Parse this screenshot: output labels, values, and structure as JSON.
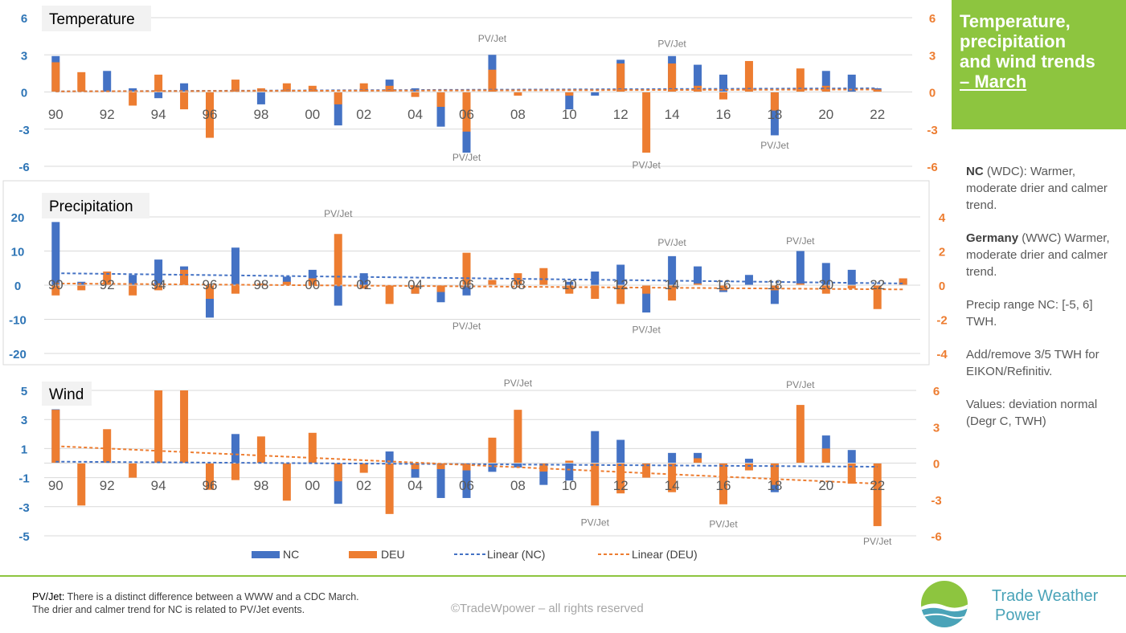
{
  "sidebar": {
    "title_lines": [
      "Temperature,",
      "precipitation",
      "and wind trends"
    ],
    "title_link": "– March",
    "notes": [
      {
        "bold": "NC",
        "text": " (WDC): Warmer, moderate drier and calmer trend."
      },
      {
        "bold": "Germany",
        "text": " (WWC) Warmer, moderate drier and calmer trend."
      },
      {
        "bold": "",
        "text": "Precip range NC: [-5, 6] TWH."
      },
      {
        "bold": "",
        "text": "Add/remove 3/5 TWH for EIKON/Refinitiv."
      },
      {
        "bold": "",
        "text": "Values: deviation normal (Degr C, TWH)"
      }
    ]
  },
  "footer": {
    "pvjet_label": "PV/Jet:",
    "pvjet_line1": " There is a distinct difference between a WWW and a CDC March.",
    "pvjet_line2": "The drier and calmer trend for NC is related to PV/Jet events.",
    "copyright": "©TradeWpower – all rights reserved",
    "brand_line1": "Trade Weather",
    "brand_line2": "Power"
  },
  "legend": {
    "nc": "NC",
    "deu": "DEU",
    "lin_nc": "Linear (NC)",
    "lin_deu": "Linear (DEU)"
  },
  "colors": {
    "nc": "#4472c4",
    "deu": "#ed7d31",
    "left_axis": "#2e75b6",
    "accent": "#8dc53f"
  },
  "chart_data": [
    {
      "type": "bar",
      "title": "Temperature",
      "x_labels": [
        "90",
        "92",
        "94",
        "96",
        "98",
        "00",
        "02",
        "04",
        "06",
        "08",
        "10",
        "12",
        "14",
        "16",
        "18",
        "20",
        "22"
      ],
      "years": [
        1990,
        1991,
        1992,
        1993,
        1994,
        1995,
        1996,
        1997,
        1998,
        1999,
        2000,
        2001,
        2002,
        2003,
        2004,
        2005,
        2006,
        2007,
        2008,
        2009,
        2010,
        2011,
        2012,
        2013,
        2014,
        2015,
        2016,
        2017,
        2018,
        2019,
        2020,
        2021,
        2022
      ],
      "left_ylim": [
        -6,
        6
      ],
      "left_ticks": [
        -6,
        -3,
        0,
        3,
        6
      ],
      "right_ylim": [
        -6,
        6
      ],
      "right_ticks": [
        -6,
        -3,
        0,
        3,
        6
      ],
      "series": [
        {
          "name": "NC",
          "axis": "left",
          "values": [
            2.9,
            0,
            1.7,
            0.3,
            -0.5,
            0.7,
            -1.2,
            0,
            -1.0,
            0,
            0,
            -2.7,
            0.3,
            1.0,
            0.3,
            -2.8,
            -4.9,
            3.0,
            0,
            0,
            -1.4,
            -0.3,
            2.6,
            0,
            2.9,
            2.2,
            1.4,
            0,
            -3.5,
            0,
            1.7,
            1.4,
            0.3
          ]
        },
        {
          "name": "DEU",
          "axis": "right",
          "values": [
            2.4,
            1.6,
            0,
            -1.1,
            1.4,
            -1.4,
            -3.7,
            1.0,
            0.3,
            0.7,
            0.5,
            -1.0,
            0.7,
            0.5,
            -0.4,
            -1.2,
            -3.2,
            1.8,
            -0.3,
            0,
            -0.3,
            0,
            2.3,
            -4.9,
            2.3,
            0.5,
            -0.6,
            2.5,
            -1.5,
            1.9,
            0.5,
            0,
            0.2
          ]
        },
        {
          "name": "Linear (NC)",
          "axis": "left",
          "start": 0.05,
          "end": 0.3
        },
        {
          "name": "Linear (DEU)",
          "axis": "right",
          "start": 0.05,
          "end": 0.2
        }
      ],
      "annotations": [
        {
          "text": "PV/Jet",
          "year": 2007,
          "value": 4.3
        },
        {
          "text": "PV/Jet",
          "year": 2006,
          "value": -5.3
        },
        {
          "text": "PV/Jet",
          "year": 2014,
          "value": 3.9
        },
        {
          "text": "PV/Jet",
          "year": 2013,
          "value": -5.9
        },
        {
          "text": "PV/Jet",
          "year": 2018,
          "value": -4.3
        }
      ]
    },
    {
      "type": "bar",
      "title": "Precipitation",
      "x_labels": [
        "90",
        "92",
        "94",
        "96",
        "98",
        "00",
        "02",
        "04",
        "06",
        "08",
        "10",
        "12",
        "14",
        "16",
        "18",
        "20",
        "22"
      ],
      "years": [
        1990,
        1991,
        1992,
        1993,
        1994,
        1995,
        1996,
        1997,
        1998,
        1999,
        2000,
        2001,
        2002,
        2003,
        2004,
        2005,
        2006,
        2007,
        2008,
        2009,
        2010,
        2011,
        2012,
        2013,
        2014,
        2015,
        2016,
        2017,
        2018,
        2019,
        2020,
        2021,
        2022,
        2023
      ],
      "left_ylim": [
        -20,
        20
      ],
      "left_ticks": [
        -20,
        -10,
        0,
        10,
        20
      ],
      "right_ylim": [
        -4,
        4
      ],
      "right_ticks": [
        -4,
        -2,
        0,
        2,
        4
      ],
      "series": [
        {
          "name": "NC",
          "axis": "left",
          "values": [
            18.5,
            1.0,
            0,
            3.0,
            7.5,
            5.5,
            -9.5,
            11.0,
            0,
            2.5,
            4.5,
            -6.0,
            3.5,
            0,
            -2.5,
            -5.0,
            -3.0,
            1.5,
            0,
            0,
            1.0,
            4.0,
            6.0,
            -8.0,
            8.5,
            5.5,
            -2.0,
            3.0,
            -5.5,
            10.0,
            6.5,
            4.5,
            0,
            2.0
          ]
        },
        {
          "name": "DEU",
          "axis": "right",
          "values": [
            -0.6,
            -0.3,
            0.8,
            -0.6,
            -0.3,
            0.9,
            -0.8,
            -0.5,
            0.1,
            0.2,
            0.4,
            3.0,
            -0.2,
            -1.1,
            -0.5,
            -0.4,
            1.9,
            0.3,
            0.7,
            1.0,
            -0.5,
            -0.8,
            -1.1,
            -0.5,
            -0.9,
            0.1,
            -0.3,
            0,
            -0.3,
            0.1,
            -0.5,
            -0.2,
            -1.4,
            0.4
          ]
        },
        {
          "name": "Linear (NC)",
          "axis": "left",
          "start": 3.5,
          "end": 0.5
        },
        {
          "name": "Linear (DEU)",
          "axis": "right",
          "start": 0.1,
          "end": -0.25
        }
      ],
      "annotations": [
        {
          "text": "PV/Jet",
          "year": 2001,
          "value": 21
        },
        {
          "text": "PV/Jet",
          "year": 2006,
          "value": -12
        },
        {
          "text": "PV/Jet",
          "year": 2014,
          "value": 12.5
        },
        {
          "text": "PV/Jet",
          "year": 2013,
          "value": -13
        },
        {
          "text": "PV/Jet",
          "year": 2019,
          "value": 13
        }
      ]
    },
    {
      "type": "bar",
      "title": "Wind",
      "x_labels": [
        "90",
        "92",
        "94",
        "96",
        "98",
        "00",
        "02",
        "04",
        "06",
        "08",
        "10",
        "12",
        "14",
        "16",
        "18",
        "20",
        "22"
      ],
      "years": [
        1990,
        1991,
        1992,
        1993,
        1994,
        1995,
        1996,
        1997,
        1998,
        1999,
        2000,
        2001,
        2002,
        2003,
        2004,
        2005,
        2006,
        2007,
        2008,
        2009,
        2010,
        2011,
        2012,
        2013,
        2014,
        2015,
        2016,
        2017,
        2018,
        2019,
        2020,
        2021,
        2022
      ],
      "left_ylim": [
        -5,
        5
      ],
      "left_ticks": [
        -5,
        -3,
        -1,
        1,
        3,
        5
      ],
      "right_ylim": [
        -6,
        6
      ],
      "right_ticks": [
        -6,
        -3,
        0,
        3,
        6
      ],
      "series": [
        {
          "name": "NC",
          "axis": "left",
          "values": [
            3.7,
            0,
            0,
            0,
            0,
            0,
            0,
            2.0,
            0,
            0,
            0,
            -2.8,
            0,
            0.8,
            -1.0,
            -2.4,
            -2.4,
            -0.6,
            -0.3,
            -1.5,
            -1.2,
            2.2,
            1.6,
            0,
            0.7,
            0.7,
            0,
            0.3,
            -2.0,
            0,
            1.9,
            0.9,
            0
          ]
        },
        {
          "name": "DEU",
          "axis": "right",
          "values": [
            4.4,
            -3.5,
            2.8,
            -1.2,
            6.0,
            6.0,
            -2.2,
            -1.4,
            2.2,
            -3.1,
            2.5,
            -1.5,
            -0.8,
            -4.2,
            -0.5,
            -0.5,
            -0.6,
            2.1,
            4.4,
            -0.7,
            0.2,
            -3.5,
            -2.5,
            -1.2,
            -2.4,
            0.4,
            -3.4,
            -0.6,
            -1.8,
            4.8,
            1.2,
            -1.7,
            -5.2
          ]
        },
        {
          "name": "Linear (NC)",
          "axis": "left",
          "start": 0.1,
          "end": -0.25
        },
        {
          "name": "Linear (DEU)",
          "axis": "right",
          "start": 1.4,
          "end": -1.7
        }
      ],
      "annotations": [
        {
          "text": "PV/Jet",
          "year": 2008,
          "value": 5.5
        },
        {
          "text": "PV/Jet",
          "year": 2011,
          "value": -4.1
        },
        {
          "text": "PV/Jet",
          "year": 2016,
          "value": -4.2
        },
        {
          "text": "PV/Jet",
          "year": 2019,
          "value": 5.4
        },
        {
          "text": "PV/Jet",
          "year": 2022,
          "value": -5.4
        }
      ]
    }
  ]
}
